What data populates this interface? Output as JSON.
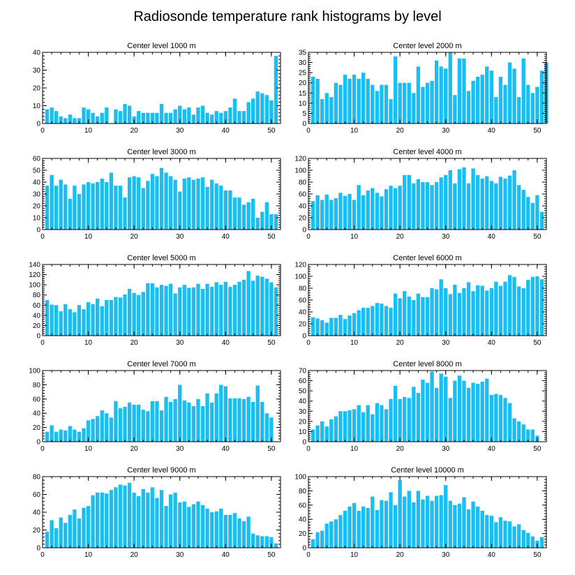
{
  "page_title": "Radiosonde temperature rank histograms by level",
  "colors": {
    "bar": "#1ABEF0",
    "axis": "#000000",
    "background": "#ffffff"
  },
  "chart_data": [
    {
      "type": "bar",
      "title": "Center level 1000 m",
      "xlim": [
        0,
        52
      ],
      "ylim": [
        0,
        40
      ],
      "xticks": [
        0,
        10,
        20,
        30,
        40,
        50
      ],
      "yticks": [
        0,
        10,
        20,
        30,
        40
      ],
      "values": [
        8,
        9,
        7,
        4,
        3,
        5,
        3,
        3,
        9,
        8,
        6,
        4,
        6,
        9,
        0,
        8,
        7,
        11,
        10,
        4,
        7,
        6,
        6,
        6,
        6,
        11,
        6,
        6,
        8,
        10,
        8,
        9,
        5,
        9,
        10,
        6,
        5,
        7,
        6,
        7,
        9,
        14,
        7,
        7,
        12,
        14,
        18,
        17,
        16,
        13,
        38,
        0
      ]
    },
    {
      "type": "bar",
      "title": "Center level 2000 m",
      "xlim": [
        0,
        52
      ],
      "ylim": [
        0,
        35
      ],
      "xticks": [
        0,
        10,
        20,
        30,
        40,
        50
      ],
      "yticks": [
        0,
        5,
        10,
        15,
        20,
        25,
        30,
        35
      ],
      "values": [
        23,
        22,
        12,
        15,
        13,
        20,
        19,
        24,
        22,
        24,
        22,
        25,
        22,
        19,
        16,
        19,
        19,
        12,
        33,
        20,
        20,
        20,
        15,
        28,
        18,
        20,
        21,
        31,
        28,
        27,
        35,
        14,
        32,
        32,
        16,
        21,
        23,
        24,
        28,
        26,
        13,
        23,
        19,
        30,
        27,
        13,
        32,
        19,
        15,
        18,
        26,
        30
      ]
    },
    {
      "type": "bar",
      "title": "Center level 3000 m",
      "xlim": [
        0,
        52
      ],
      "ylim": [
        0,
        60
      ],
      "xticks": [
        0,
        10,
        20,
        30,
        40,
        50
      ],
      "yticks": [
        0,
        10,
        20,
        30,
        40,
        50,
        60
      ],
      "values": [
        37,
        46,
        37,
        42,
        38,
        26,
        37,
        30,
        38,
        40,
        39,
        40,
        43,
        40,
        48,
        37,
        37,
        27,
        44,
        45,
        44,
        35,
        41,
        47,
        45,
        52,
        48,
        45,
        42,
        32,
        43,
        44,
        42,
        43,
        44,
        36,
        42,
        39,
        37,
        33,
        33,
        27,
        27,
        21,
        23,
        26,
        10,
        15,
        23,
        13,
        13,
        0
      ]
    },
    {
      "type": "bar",
      "title": "Center level 4000 m",
      "xlim": [
        0,
        52
      ],
      "ylim": [
        0,
        120
      ],
      "xticks": [
        0,
        10,
        20,
        30,
        40,
        50
      ],
      "yticks": [
        0,
        20,
        40,
        60,
        80,
        100,
        120
      ],
      "values": [
        48,
        58,
        50,
        59,
        50,
        53,
        62,
        57,
        60,
        50,
        75,
        58,
        66,
        70,
        62,
        56,
        68,
        74,
        70,
        74,
        92,
        92,
        78,
        85,
        80,
        80,
        75,
        80,
        88,
        92,
        100,
        78,
        102,
        105,
        78,
        103,
        92,
        86,
        90,
        82,
        78,
        89,
        86,
        91,
        100,
        75,
        67,
        55,
        45,
        58,
        30,
        0
      ]
    },
    {
      "type": "bar",
      "title": "Center level 5000 m",
      "xlim": [
        0,
        52
      ],
      "ylim": [
        0,
        140
      ],
      "xticks": [
        0,
        10,
        20,
        30,
        40,
        50
      ],
      "yticks": [
        0,
        20,
        40,
        60,
        80,
        100,
        120,
        140
      ],
      "values": [
        70,
        61,
        60,
        48,
        62,
        52,
        46,
        60,
        52,
        66,
        62,
        73,
        58,
        70,
        70,
        76,
        75,
        81,
        92,
        84,
        80,
        86,
        103,
        103,
        95,
        100,
        98,
        102,
        83,
        95,
        100,
        94,
        95,
        102,
        92,
        102,
        96,
        105,
        100,
        106,
        96,
        100,
        106,
        110,
        127,
        108,
        118,
        116,
        112,
        105,
        95,
        0
      ]
    },
    {
      "type": "bar",
      "title": "Center level 6000 m",
      "xlim": [
        0,
        52
      ],
      "ylim": [
        0,
        120
      ],
      "xticks": [
        0,
        10,
        20,
        30,
        40,
        50
      ],
      "yticks": [
        0,
        20,
        40,
        60,
        80,
        100,
        120
      ],
      "values": [
        31,
        29,
        26,
        22,
        30,
        30,
        35,
        28,
        34,
        38,
        43,
        47,
        47,
        50,
        55,
        54,
        50,
        47,
        71,
        63,
        75,
        66,
        60,
        71,
        65,
        65,
        80,
        78,
        95,
        80,
        70,
        86,
        72,
        80,
        90,
        75,
        85,
        84,
        76,
        80,
        91,
        84,
        91,
        102,
        99,
        83,
        80,
        94,
        99,
        100,
        95,
        0
      ]
    },
    {
      "type": "bar",
      "title": "Center level 7000 m",
      "xlim": [
        0,
        52
      ],
      "ylim": [
        0,
        100
      ],
      "xticks": [
        0,
        10,
        20,
        30,
        40,
        50
      ],
      "yticks": [
        0,
        20,
        40,
        60,
        80,
        100
      ],
      "values": [
        14,
        23,
        14,
        17,
        16,
        22,
        17,
        14,
        19,
        30,
        32,
        36,
        44,
        40,
        34,
        57,
        47,
        49,
        55,
        52,
        52,
        45,
        43,
        57,
        57,
        44,
        63,
        56,
        60,
        80,
        58,
        55,
        50,
        60,
        50,
        68,
        55,
        68,
        80,
        78,
        61,
        61,
        61,
        60,
        63,
        56,
        79,
        56,
        40,
        34,
        0,
        0
      ]
    },
    {
      "type": "bar",
      "title": "Center level 8000 m",
      "xlim": [
        0,
        52
      ],
      "ylim": [
        0,
        70
      ],
      "xticks": [
        0,
        10,
        20,
        30,
        40,
        50
      ],
      "yticks": [
        0,
        10,
        20,
        30,
        40,
        50,
        60,
        70
      ],
      "values": [
        12,
        16,
        20,
        15,
        22,
        25,
        30,
        30,
        31,
        32,
        36,
        29,
        36,
        27,
        38,
        36,
        32,
        42,
        55,
        42,
        44,
        43,
        54,
        48,
        61,
        58,
        69,
        53,
        67,
        64,
        43,
        60,
        65,
        60,
        53,
        58,
        57,
        59,
        62,
        46,
        47,
        46,
        43,
        38,
        23,
        20,
        17,
        12,
        12,
        6,
        0,
        0
      ]
    },
    {
      "type": "bar",
      "title": "Center level 9000 m",
      "xlim": [
        0,
        52
      ],
      "ylim": [
        0,
        80
      ],
      "xticks": [
        0,
        10,
        20,
        30,
        40,
        50
      ],
      "yticks": [
        0,
        20,
        40,
        60,
        80
      ],
      "values": [
        18,
        31,
        22,
        34,
        28,
        37,
        43,
        33,
        45,
        47,
        59,
        62,
        62,
        61,
        65,
        68,
        71,
        70,
        73,
        62,
        58,
        66,
        62,
        68,
        56,
        65,
        47,
        60,
        62,
        51,
        52,
        46,
        49,
        52,
        48,
        44,
        40,
        41,
        44,
        37,
        37,
        39,
        33,
        30,
        35,
        16,
        14,
        13,
        13,
        12,
        5,
        0
      ]
    },
    {
      "type": "bar",
      "title": "Center level 10000 m",
      "xlim": [
        0,
        52
      ],
      "ylim": [
        0,
        100
      ],
      "xticks": [
        0,
        10,
        20,
        30,
        40,
        50
      ],
      "yticks": [
        0,
        20,
        40,
        60,
        80,
        100
      ],
      "values": [
        12,
        22,
        24,
        34,
        37,
        40,
        46,
        52,
        58,
        63,
        52,
        58,
        56,
        72,
        53,
        67,
        66,
        78,
        60,
        95,
        72,
        80,
        64,
        80,
        68,
        73,
        66,
        73,
        74,
        88,
        66,
        60,
        62,
        71,
        54,
        65,
        58,
        52,
        46,
        45,
        36,
        43,
        38,
        37,
        30,
        33,
        25,
        21,
        16,
        10,
        15,
        0
      ]
    }
  ]
}
